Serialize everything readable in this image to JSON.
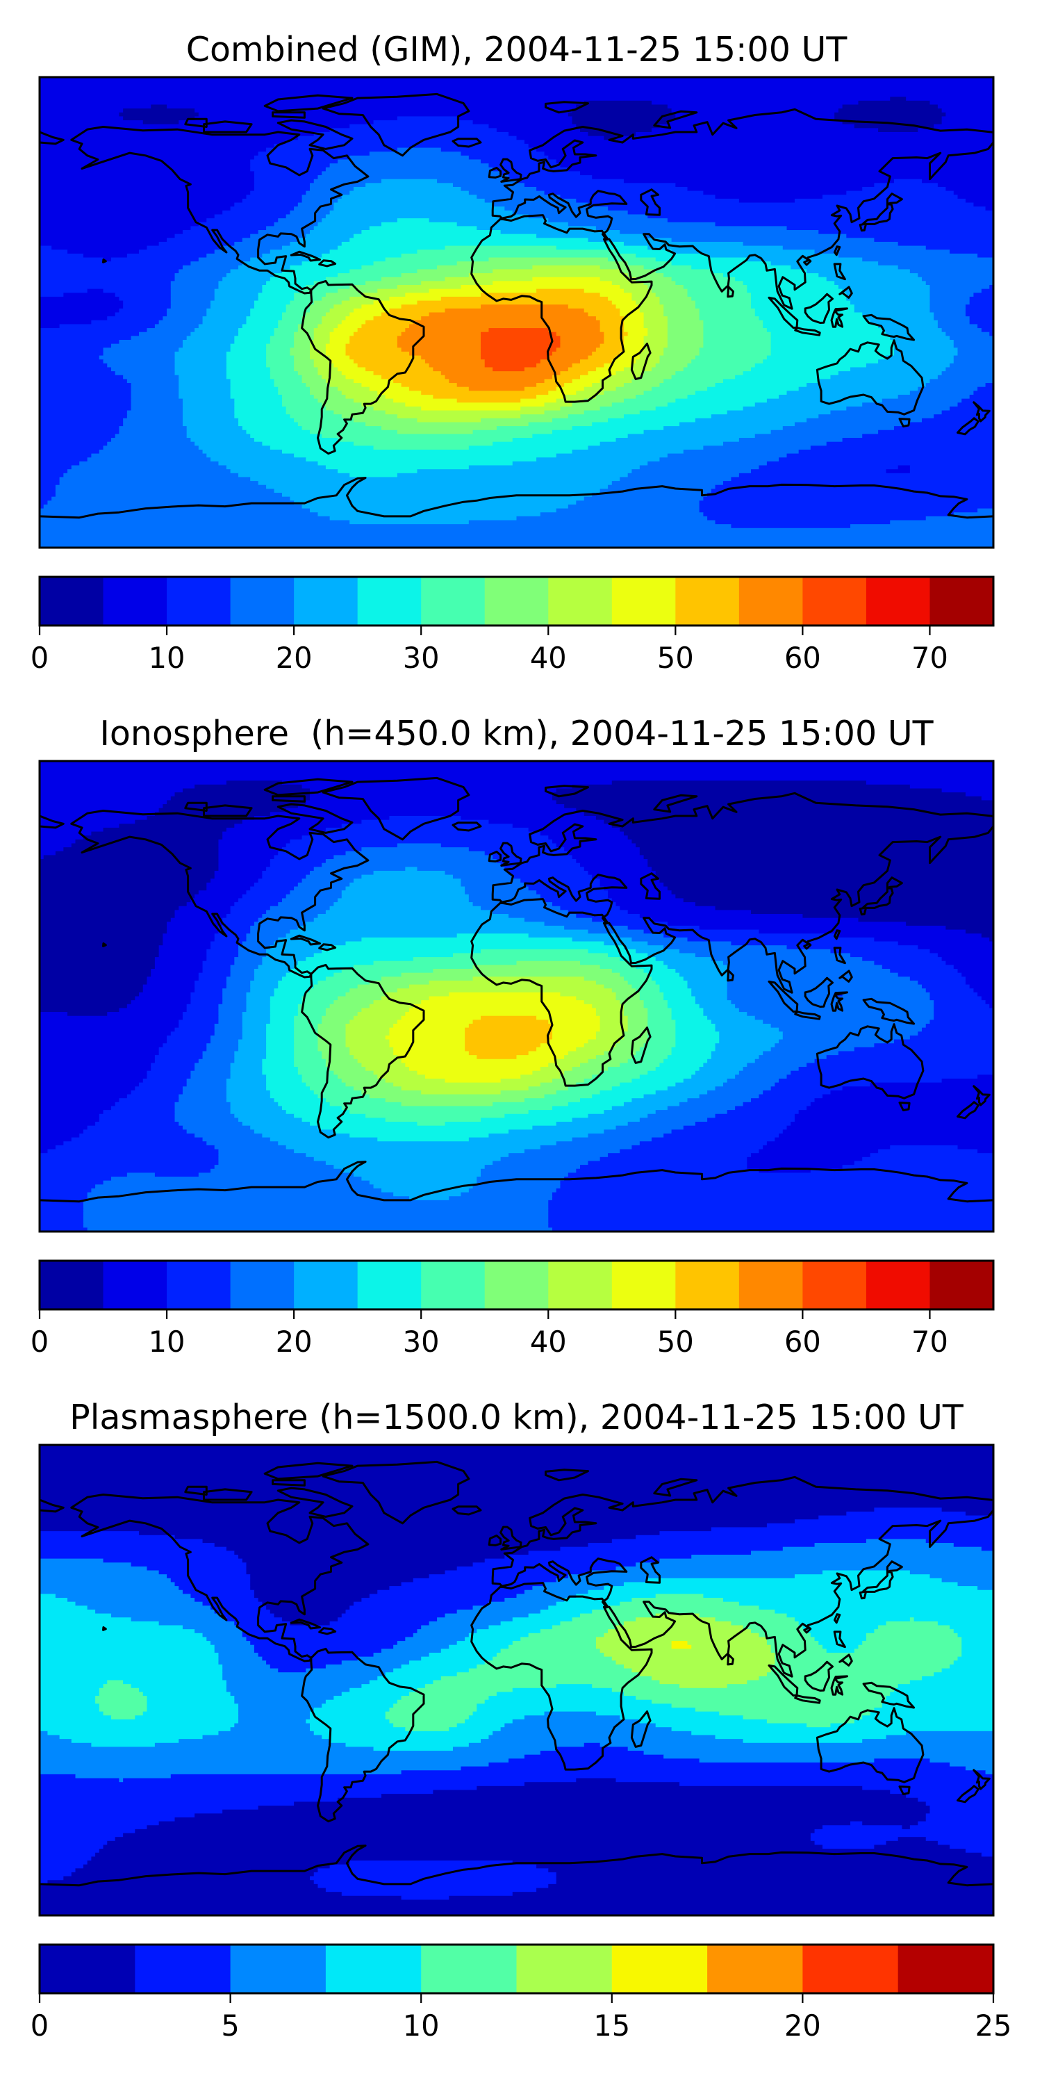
{
  "chart_data": [
    {
      "type": "heatmap",
      "subtype": "filled-contour-map",
      "title": "Combined (GIM), 2004-11-25 15:00 UT",
      "projection": "plate-carree",
      "lon": [
        -180,
        -150,
        -120,
        -90,
        -60,
        -30,
        0,
        30,
        60,
        90,
        120,
        150,
        180
      ],
      "lat": [
        90,
        75,
        60,
        45,
        30,
        15,
        0,
        -15,
        -30,
        -45,
        -60,
        -75,
        -90
      ],
      "values": [
        [
          7,
          7,
          7,
          7,
          7,
          7,
          7,
          7,
          7,
          7,
          7,
          7,
          7
        ],
        [
          7,
          5,
          5,
          7,
          9,
          10,
          8,
          4,
          5,
          8,
          5,
          4,
          7
        ],
        [
          8,
          8,
          8,
          11,
          15,
          16,
          12,
          7,
          8,
          8,
          8,
          8,
          8
        ],
        [
          8,
          8,
          8,
          12,
          21,
          22,
          17,
          13,
          11,
          9,
          10,
          11,
          9
        ],
        [
          9,
          8,
          11,
          17,
          25,
          27,
          25,
          22,
          18,
          17,
          15,
          13,
          12
        ],
        [
          12,
          11,
          17,
          25,
          31,
          37,
          42,
          43,
          33,
          28,
          24,
          20,
          16
        ],
        [
          9,
          10,
          19,
          29,
          46,
          55,
          57,
          54,
          38,
          30,
          26,
          22,
          12
        ],
        [
          12,
          16,
          22,
          32,
          52,
          56,
          62,
          55,
          38,
          31,
          27,
          24,
          17
        ],
        [
          12,
          14,
          22,
          30,
          43,
          52,
          55,
          42,
          32,
          27,
          23,
          20,
          14
        ],
        [
          10,
          15,
          21,
          28,
          33,
          37,
          33,
          28,
          24,
          21,
          17,
          14,
          11
        ],
        [
          14,
          17,
          19,
          22,
          26,
          25,
          24,
          22,
          18,
          15,
          11,
          10,
          12
        ],
        [
          15,
          17,
          18,
          19,
          22,
          22,
          21,
          19,
          16,
          13,
          13,
          14,
          15
        ],
        [
          17,
          17,
          17,
          17,
          17,
          17,
          17,
          17,
          17,
          17,
          17,
          17,
          17
        ]
      ],
      "levels": [
        0,
        5,
        10,
        15,
        20,
        25,
        30,
        35,
        40,
        45,
        50,
        55,
        60,
        65,
        70,
        75
      ],
      "colors": [
        "#0000a4",
        "#0000e8",
        "#0022ff",
        "#0070ff",
        "#00b0ff",
        "#0cf4e8",
        "#46ffb0",
        "#80ff78",
        "#b6ff40",
        "#ecff10",
        "#ffc400",
        "#ff8800",
        "#ff4800",
        "#f00c00",
        "#a40000"
      ],
      "colorbar": {
        "range": [
          0,
          75
        ],
        "ticks": [
          0,
          10,
          20,
          30,
          40,
          50,
          60,
          70
        ],
        "tick_labels": [
          "0",
          "10",
          "20",
          "30",
          "40",
          "50",
          "60",
          "70"
        ]
      }
    },
    {
      "type": "heatmap",
      "subtype": "filled-contour-map",
      "title": "Ionosphere  (h=450.0 km), 2004-11-25 15:00 UT",
      "projection": "plate-carree",
      "lon": [
        -180,
        -150,
        -120,
        -90,
        -60,
        -30,
        0,
        30,
        60,
        90,
        120,
        150,
        180
      ],
      "lat": [
        90,
        75,
        60,
        45,
        30,
        15,
        0,
        -15,
        -30,
        -45,
        -60,
        -75,
        -90
      ],
      "values": [
        [
          7,
          7,
          7,
          7,
          7,
          7,
          7,
          7,
          7,
          7,
          7,
          7,
          7
        ],
        [
          7,
          7,
          4,
          4,
          7,
          8,
          6,
          4,
          3,
          3,
          3,
          4,
          5
        ],
        [
          6,
          4,
          4,
          9,
          13,
          14,
          12,
          7,
          3,
          2,
          2,
          3,
          4
        ],
        [
          4,
          3,
          4,
          12,
          20,
          21,
          15,
          10,
          4,
          2,
          2,
          3,
          4
        ],
        [
          4,
          3,
          7,
          17,
          22,
          22,
          20,
          14,
          8,
          6,
          5,
          4,
          4
        ],
        [
          4,
          3,
          9,
          22,
          28,
          30,
          33,
          32,
          22,
          18,
          16,
          12,
          6
        ],
        [
          4,
          4,
          11,
          26,
          37,
          45,
          46,
          43,
          28,
          17,
          15,
          16,
          9
        ],
        [
          7,
          7,
          13,
          27,
          42,
          48,
          52,
          45,
          30,
          22,
          17,
          15,
          12
        ],
        [
          9,
          8,
          16,
          27,
          38,
          46,
          46,
          35,
          27,
          18,
          12,
          11,
          10
        ],
        [
          7,
          11,
          17,
          24,
          30,
          33,
          30,
          25,
          18,
          13,
          8,
          7,
          7
        ],
        [
          10,
          13,
          14,
          19,
          22,
          23,
          20,
          16,
          12,
          10,
          9,
          11,
          10
        ],
        [
          13,
          16,
          16,
          17,
          19,
          21,
          17,
          13,
          11,
          11,
          12,
          13,
          13
        ],
        [
          15,
          15,
          15,
          15,
          15,
          15,
          15,
          15,
          15,
          15,
          15,
          15,
          15
        ]
      ],
      "levels": [
        0,
        5,
        10,
        15,
        20,
        25,
        30,
        35,
        40,
        45,
        50,
        55,
        60,
        65,
        70,
        75
      ],
      "colors": [
        "#0000a4",
        "#0000e8",
        "#0022ff",
        "#0070ff",
        "#00b0ff",
        "#0cf4e8",
        "#46ffb0",
        "#80ff78",
        "#b6ff40",
        "#ecff10",
        "#ffc400",
        "#ff8800",
        "#ff4800",
        "#f00c00",
        "#a40000"
      ],
      "colorbar": {
        "range": [
          0,
          75
        ],
        "ticks": [
          0,
          10,
          20,
          30,
          40,
          50,
          60,
          70
        ],
        "tick_labels": [
          "0",
          "10",
          "20",
          "30",
          "40",
          "50",
          "60",
          "70"
        ]
      }
    },
    {
      "type": "heatmap",
      "subtype": "filled-contour-map",
      "title": "Plasmasphere (h=1500.0 km), 2004-11-25 15:00 UT",
      "projection": "plate-carree",
      "lon": [
        -180,
        -150,
        -120,
        -90,
        -60,
        -30,
        0,
        30,
        60,
        90,
        120,
        150,
        180
      ],
      "lat": [
        90,
        75,
        60,
        45,
        30,
        15,
        0,
        -15,
        -30,
        -45,
        -60,
        -75,
        -90
      ],
      "values": [
        [
          1,
          1,
          1,
          1,
          1,
          1,
          1,
          1,
          1,
          1,
          1,
          1,
          1
        ],
        [
          1.5,
          1.5,
          1.5,
          1.5,
          1.5,
          1.5,
          1.5,
          1.5,
          1.5,
          1.5,
          1.5,
          1.5,
          1.5
        ],
        [
          2,
          2,
          1.5,
          1,
          1,
          1,
          1,
          1.5,
          2,
          2.3,
          3,
          3.5,
          2.8
        ],
        [
          5.5,
          5,
          4,
          1.5,
          1.5,
          2,
          3,
          4,
          5.5,
          6,
          7,
          7,
          6
        ],
        [
          8,
          6.5,
          5,
          2,
          2.5,
          4,
          5.5,
          9,
          11,
          9.5,
          8.5,
          8.5,
          8
        ],
        [
          9,
          9,
          8,
          3.5,
          3.5,
          6.5,
          10,
          12.5,
          15,
          13,
          9.5,
          11.5,
          9
        ],
        [
          9,
          10,
          8.5,
          5.5,
          7,
          10,
          10.5,
          10.5,
          13,
          12.5,
          11,
          10,
          9
        ],
        [
          8,
          10,
          8.5,
          7,
          9,
          11,
          7.5,
          7,
          8.5,
          10,
          10.5,
          8.5,
          8
        ],
        [
          6,
          6.5,
          6,
          6,
          6.5,
          6.5,
          5,
          4,
          5,
          5.5,
          5.5,
          5,
          6
        ],
        [
          3.5,
          4,
          3.5,
          3,
          2.5,
          2,
          1.5,
          1.5,
          1.5,
          1.5,
          1.8,
          2.5,
          3.5
        ],
        [
          3.2,
          2.5,
          1.5,
          1,
          1,
          1,
          1,
          1,
          1.2,
          1.5,
          2.8,
          2.5,
          3
        ],
        [
          2.7,
          2,
          1.5,
          2,
          3.2,
          3.5,
          3,
          2,
          1.5,
          1.5,
          1.5,
          1.5,
          2
        ],
        [
          1.5,
          1.5,
          1.5,
          1.5,
          1.5,
          1.5,
          1.5,
          1.5,
          1.5,
          1.5,
          1.5,
          1.5,
          1.5
        ]
      ],
      "levels": [
        0,
        2.5,
        5,
        7.5,
        10,
        12.5,
        15,
        17.5,
        20,
        22.5,
        25
      ],
      "colors": [
        "#0000b4",
        "#0018ff",
        "#0088ff",
        "#00e8f8",
        "#52ffa6",
        "#aaff4e",
        "#f8f800",
        "#ff9400",
        "#ff3400",
        "#b40000"
      ],
      "colorbar": {
        "range": [
          0,
          25
        ],
        "ticks": [
          0,
          5,
          10,
          15,
          20,
          25
        ],
        "tick_labels": [
          "0",
          "5",
          "10",
          "15",
          "20",
          "25"
        ]
      }
    }
  ]
}
